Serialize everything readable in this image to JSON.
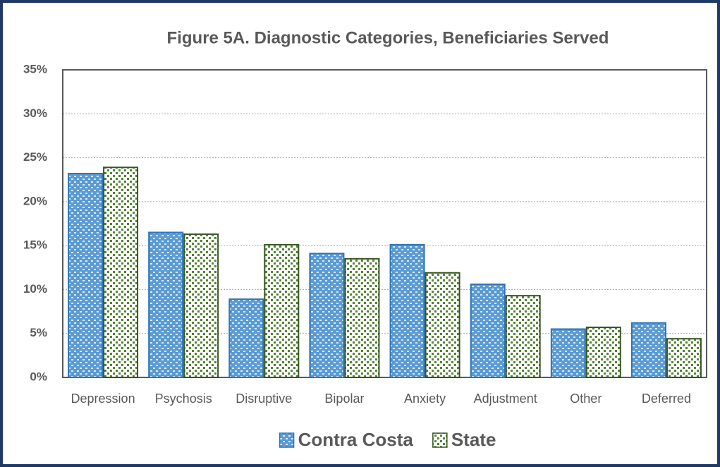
{
  "chart_data": {
    "type": "bar",
    "title": "Figure 5A. Diagnostic Categories, Beneficiaries Served",
    "categories": [
      "Depression",
      "Psychosis",
      "Disruptive",
      "Bipolar",
      "Anxiety",
      "Adjustment",
      "Other",
      "Deferred"
    ],
    "series": [
      {
        "name": "Contra Costa",
        "color": "#5b9bd5",
        "values": [
          23.2,
          16.5,
          8.9,
          14.1,
          15.1,
          10.6,
          5.5,
          6.2
        ]
      },
      {
        "name": "State",
        "color": "#548235",
        "values": [
          23.9,
          16.3,
          15.1,
          13.5,
          11.9,
          9.3,
          5.7,
          4.4
        ]
      }
    ],
    "ylim": [
      0,
      35
    ],
    "yticks": [
      {
        "value": 0,
        "label": "0%"
      },
      {
        "value": 5,
        "label": "5%"
      },
      {
        "value": 10,
        "label": "10%"
      },
      {
        "value": 15,
        "label": "15%"
      },
      {
        "value": 20,
        "label": "20%"
      },
      {
        "value": 25,
        "label": "25%"
      },
      {
        "value": 30,
        "label": "30%"
      },
      {
        "value": 35,
        "label": "35%"
      }
    ],
    "grid": true,
    "legend": "bottom"
  }
}
